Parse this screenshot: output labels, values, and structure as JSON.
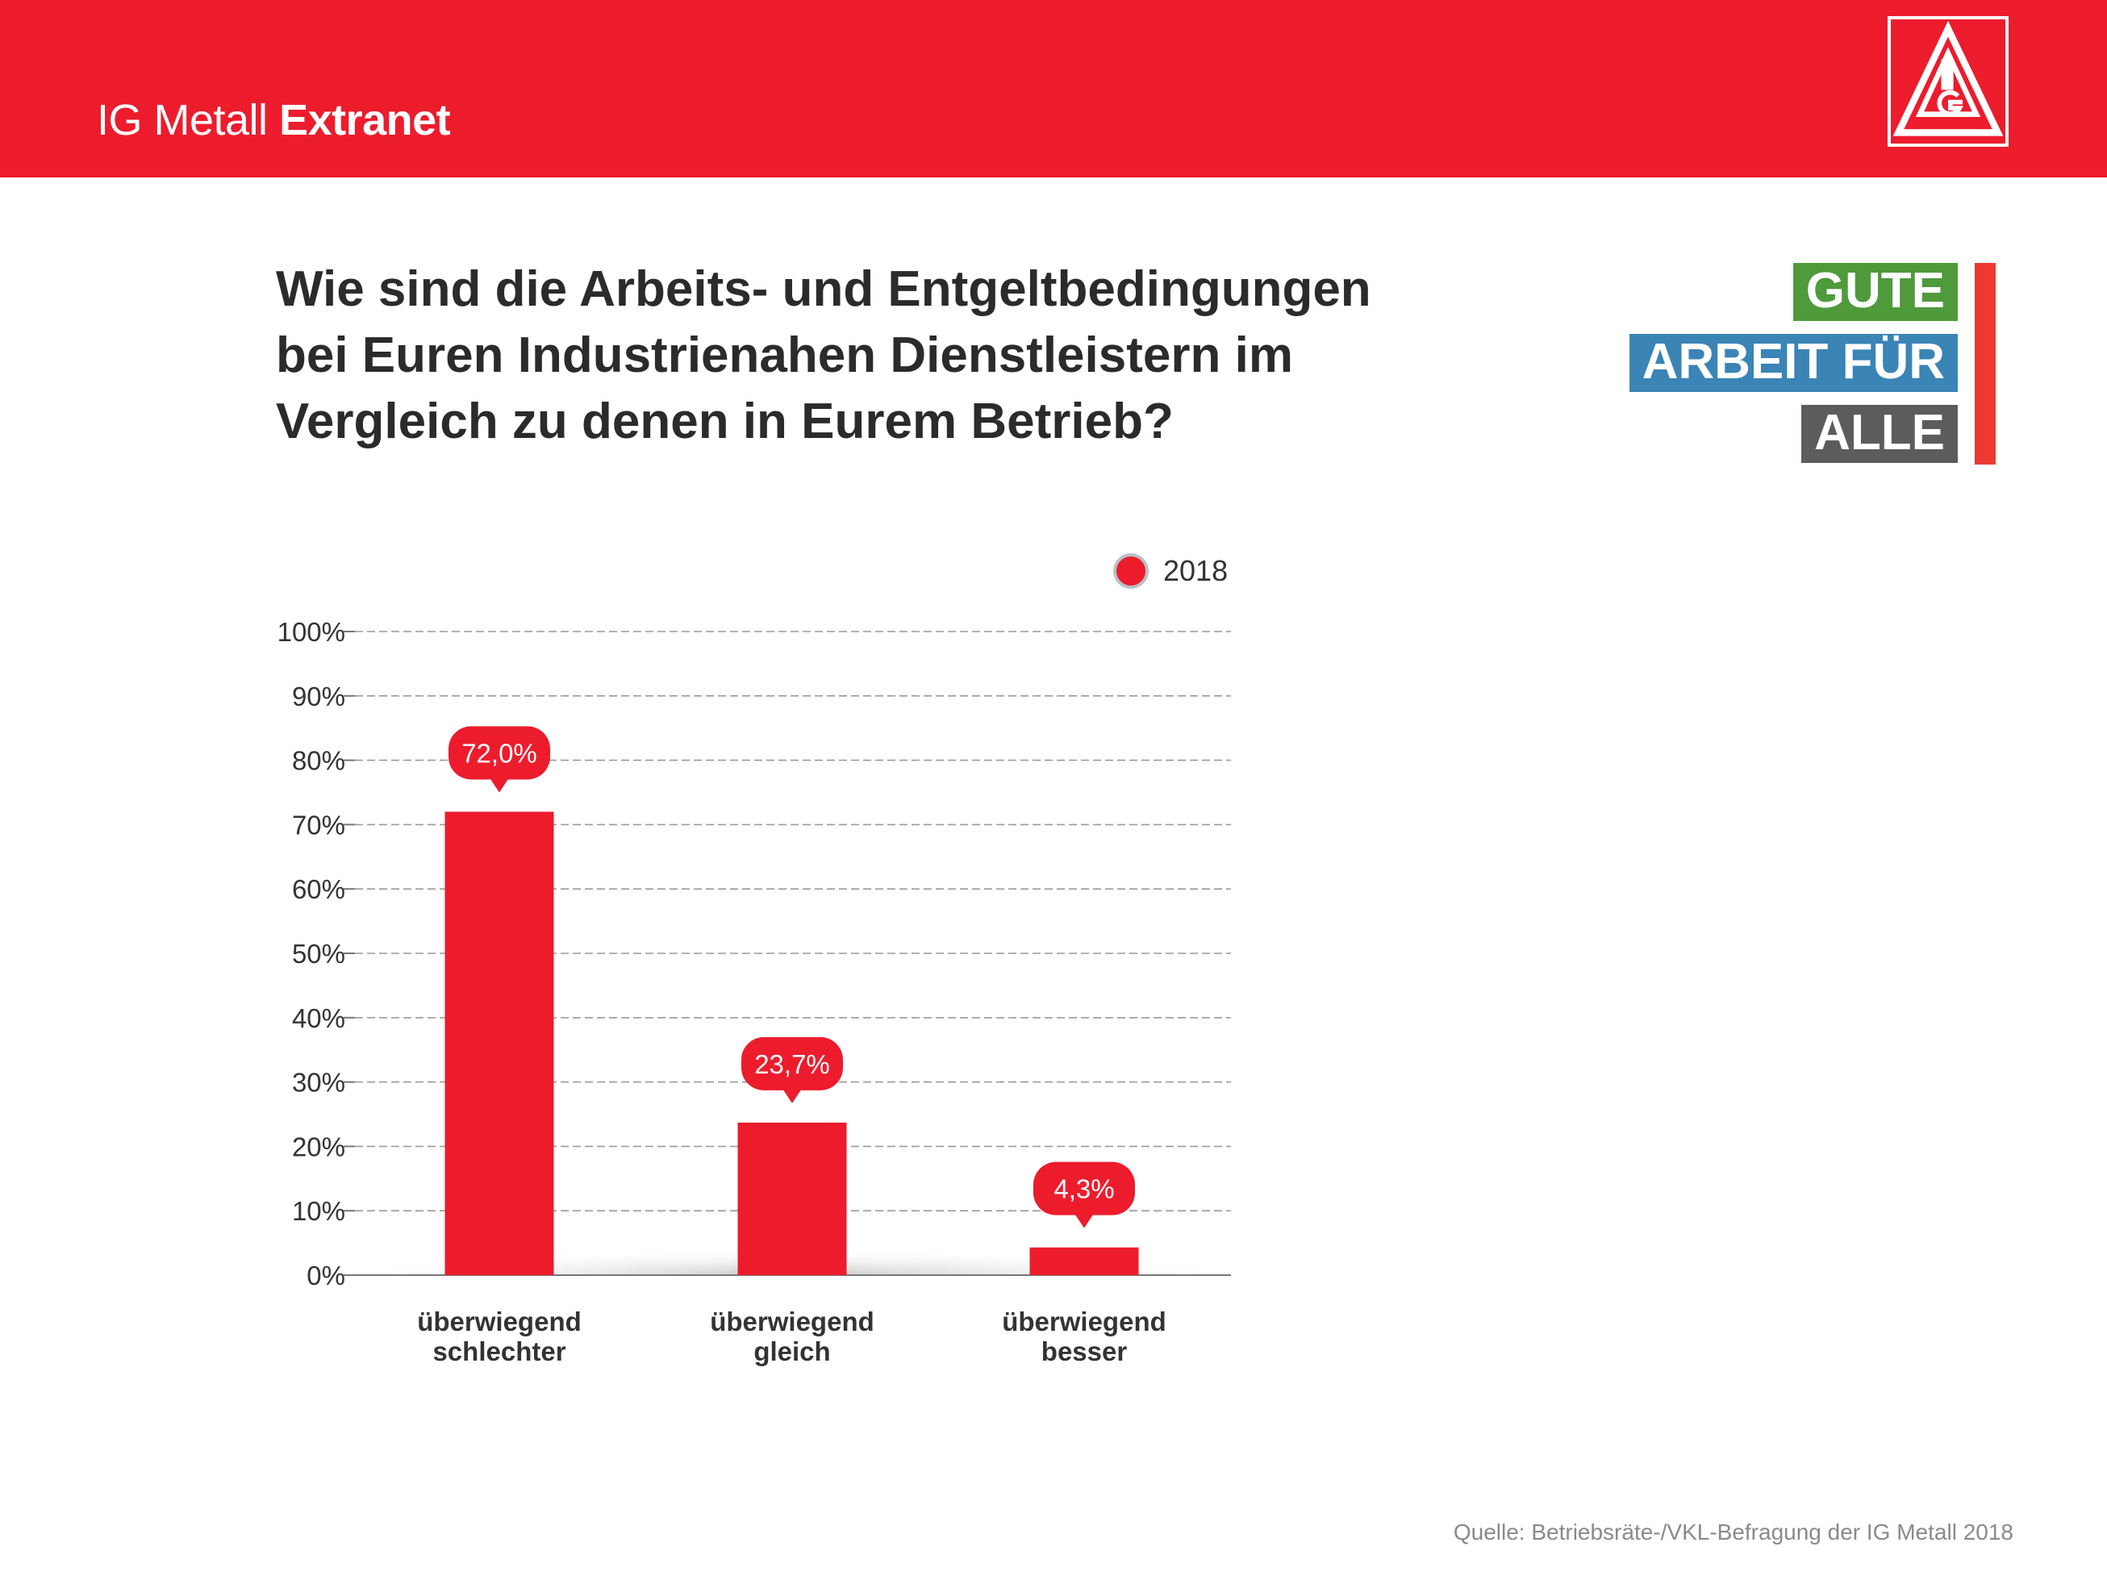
{
  "header": {
    "brand_regular": "IG Metall",
    "brand_bold": "Extranet",
    "logo_icon": "ig-metall-triangle-logo",
    "background_color": "#ec1c2d"
  },
  "question": {
    "line1": "Wie sind die Arbeits- und Entgeltbedingungen",
    "line2": "bei Euren Industrienahen Dienstleistern im",
    "line3": "Vergleich zu denen in Eurem Betrieb?"
  },
  "campaign": {
    "gute": "GUTE",
    "arbeit": "ARBEIT FÜR",
    "alle": "ALLE",
    "colors": {
      "gute": "#4f9a3b",
      "arbeit": "#3a84b6",
      "alle": "#5c5c5c",
      "bar": "#ec3a33"
    }
  },
  "legend": {
    "label": "2018"
  },
  "source": "Quelle: Betriebsräte-/VKL-Befragung der IG Metall 2018",
  "chart_data": {
    "type": "bar",
    "categories": [
      [
        "überwiegend",
        "schlechter"
      ],
      [
        "überwiegend",
        "gleich"
      ],
      [
        "überwiegend",
        "besser"
      ]
    ],
    "series": [
      {
        "name": "2018",
        "values": [
          72.0,
          23.7,
          4.3
        ],
        "labels": [
          "72,0%",
          "23,7%",
          "4,3%"
        ],
        "color": "#ec1c2d"
      }
    ],
    "yticks": [
      "0%",
      "10%",
      "20%",
      "30%",
      "40%",
      "50%",
      "60%",
      "70%",
      "80%",
      "90%",
      "100%"
    ],
    "ylim": [
      0,
      100
    ],
    "grid": true,
    "legend_position": "top-right"
  }
}
